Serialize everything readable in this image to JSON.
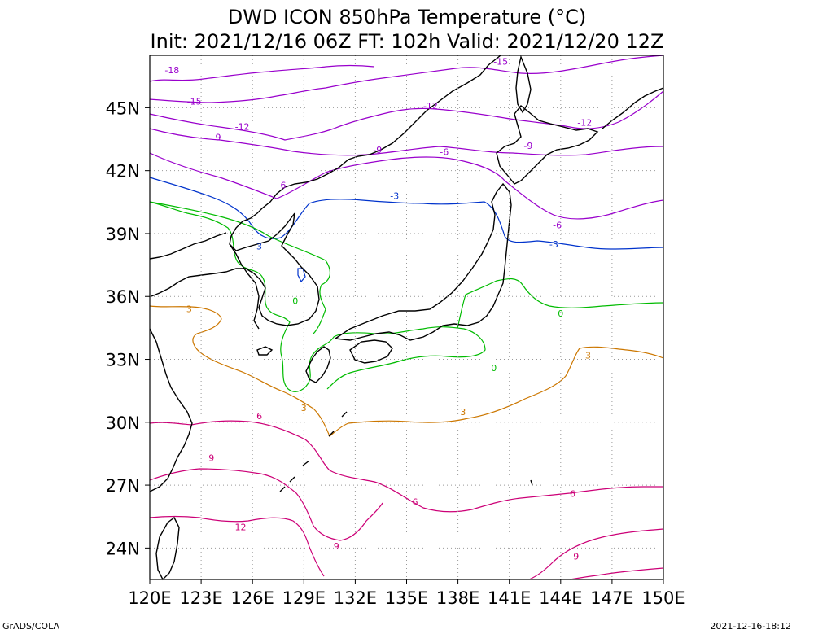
{
  "title": "DWD ICON 850hPa Temperature (°C)",
  "subtitle": "Init: 2021/12/16 06Z  FT: 102h  Valid: 2021/12/20 12Z",
  "footer_left": "GrADS/COLA",
  "footer_right": "2021-12-16-18:12",
  "map": {
    "lon_range": [
      120,
      150
    ],
    "lat_range": [
      22.5,
      47.5
    ],
    "grid": true,
    "x_ticks": [
      "120E",
      "123E",
      "126E",
      "129E",
      "132E",
      "135E",
      "138E",
      "141E",
      "144E",
      "147E",
      "150E"
    ],
    "y_ticks": [
      "45N",
      "42N",
      "39N",
      "36N",
      "33N",
      "30N",
      "27N",
      "24N"
    ],
    "contour_labels": [
      {
        "text": "-18",
        "color": "#9900cc"
      },
      {
        "text": "-15",
        "color": "#9900cc"
      },
      {
        "text": "-15",
        "color": "#9900cc"
      },
      {
        "text": "-12",
        "color": "#9900cc"
      },
      {
        "text": "-12",
        "color": "#9900cc"
      },
      {
        "text": "-12",
        "color": "#9900cc"
      },
      {
        "text": "-9",
        "color": "#9900cc"
      },
      {
        "text": "-9",
        "color": "#9900cc"
      },
      {
        "text": "-9",
        "color": "#9900cc"
      },
      {
        "text": "-6",
        "color": "#9900cc"
      },
      {
        "text": "-6",
        "color": "#9900cc"
      },
      {
        "text": "-6",
        "color": "#9900cc"
      },
      {
        "text": "-3",
        "color": "#0033cc"
      },
      {
        "text": "-3",
        "color": "#0033cc"
      },
      {
        "text": "-3",
        "color": "#0033cc"
      },
      {
        "text": "0",
        "color": "#00bb00"
      },
      {
        "text": "0",
        "color": "#00bb00"
      },
      {
        "text": "0",
        "color": "#00bb00"
      },
      {
        "text": "3",
        "color": "#cc7700"
      },
      {
        "text": "3",
        "color": "#cc7700"
      },
      {
        "text": "3",
        "color": "#cc7700"
      },
      {
        "text": "3",
        "color": "#cc7700"
      },
      {
        "text": "6",
        "color": "#cc0077"
      },
      {
        "text": "6",
        "color": "#cc0077"
      },
      {
        "text": "6",
        "color": "#cc0077"
      },
      {
        "text": "9",
        "color": "#cc0077"
      },
      {
        "text": "9",
        "color": "#cc0077"
      },
      {
        "text": "9",
        "color": "#cc0077"
      },
      {
        "text": "12",
        "color": "#cc0077"
      }
    ]
  },
  "colors": {
    "minus18_to_minus6": "#9900cc",
    "minus3": "#0033cc",
    "zero": "#00bb00",
    "plus3": "#cc7700",
    "plus6_and_above": "#cc0077",
    "coastline": "#000000",
    "grid": "#999999"
  }
}
